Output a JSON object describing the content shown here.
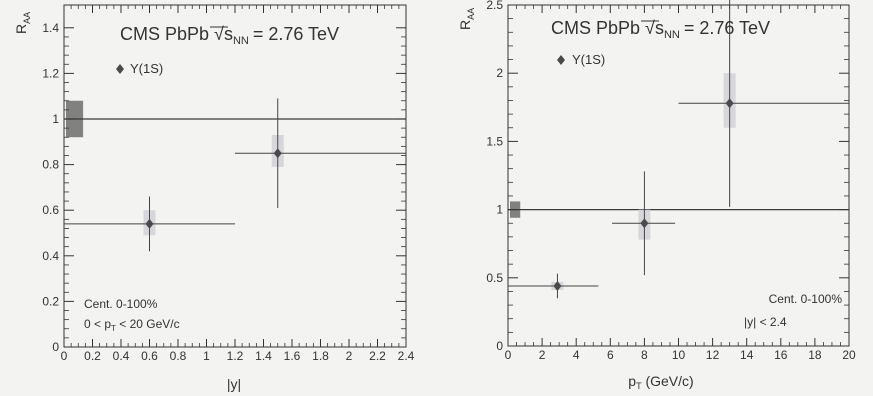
{
  "chart_data": [
    {
      "type": "scatter",
      "panel": "left",
      "header_prefix": "CMS PbPb ",
      "header_energy": "= 2.76 TeV",
      "legend": "Υ(1S)",
      "annotation_lines": [
        "Cent. 0-100%",
        "0 < p",
        " < 20 GeV/c"
      ],
      "xlabel": "|y|",
      "ylabel": "R",
      "ylabel_sub": "AA",
      "xlim": [
        0,
        2.4
      ],
      "ylim": [
        0,
        1.5
      ],
      "xticks": [
        0,
        0.2,
        0.4,
        0.6,
        0.8,
        1,
        1.2,
        1.4,
        1.6,
        1.8,
        2,
        2.2,
        2.4
      ],
      "xtick_labels": [
        "0",
        "0.2",
        "0.4",
        "0.6",
        "0.8",
        "1",
        "1.2",
        "1.4",
        "1.6",
        "1.8",
        "2",
        "2.2",
        "2.4"
      ],
      "yticks": [
        0,
        0.2,
        0.4,
        0.6,
        0.8,
        1,
        1.2,
        1.4
      ],
      "ytick_labels": [
        "0",
        "0.2",
        "0.4",
        "0.6",
        "0.8",
        "1",
        "1.2",
        "1.4"
      ],
      "reference_line": 1,
      "global_box": {
        "x": [
          0,
          0.12
        ],
        "y": [
          0.92,
          1.08
        ]
      },
      "points": [
        {
          "x": 0.6,
          "y": 0.54,
          "xerr": [
            0.6,
            0.6
          ],
          "yerr": [
            0.12,
            0.12
          ],
          "syst_y": [
            0.49,
            0.6
          ]
        },
        {
          "x": 1.5,
          "y": 0.85,
          "xerr": [
            0.3,
            0.9
          ],
          "yerr": [
            0.24,
            0.24
          ],
          "syst_y": [
            0.79,
            0.93
          ]
        }
      ],
      "grid": false
    },
    {
      "type": "scatter",
      "panel": "right",
      "header_prefix": "CMS PbPb ",
      "header_energy": "= 2.76 TeV",
      "legend": "Υ(1S)",
      "annotation_lines": [
        "Cent. 0-100%",
        "|y| < 2.4"
      ],
      "xlabel": "p",
      "xlabel_tail": " (GeV/c)",
      "ylabel": "R",
      "ylabel_sub": "AA",
      "xlim": [
        0,
        20
      ],
      "ylim": [
        0,
        2.5
      ],
      "xticks": [
        0,
        2,
        4,
        6,
        8,
        10,
        12,
        14,
        16,
        18,
        20
      ],
      "xtick_labels": [
        "0",
        "2",
        "4",
        "6",
        "8",
        "10",
        "12",
        "14",
        "16",
        "18",
        "20"
      ],
      "yticks": [
        0,
        0.5,
        1,
        1.5,
        2,
        2.5
      ],
      "ytick_labels": [
        "0",
        "0.5",
        "1",
        "1.5",
        "2",
        "2.5"
      ],
      "reference_line": 1,
      "global_box": {
        "x": [
          0,
          0.6
        ],
        "y": [
          0.94,
          1.06
        ]
      },
      "points": [
        {
          "x": 2.9,
          "y": 0.44,
          "xerr": [
            2.9,
            2.4
          ],
          "yerr": [
            0.09,
            0.09
          ],
          "syst_y": [
            0.41,
            0.47
          ]
        },
        {
          "x": 8,
          "y": 0.9,
          "xerr": [
            1.9,
            1.8
          ],
          "yerr": [
            0.38,
            0.38
          ],
          "syst_y": [
            0.78,
            1.0
          ]
        },
        {
          "x": 13,
          "y": 1.78,
          "xerr": [
            3,
            7
          ],
          "yerr": [
            0.76,
            0.76
          ],
          "syst_y": [
            1.6,
            2.0
          ]
        }
      ],
      "grid": false
    }
  ],
  "colors": {
    "background": "#f3f3f1",
    "ink": "#333333",
    "reference_line": "#3a3a3a",
    "stat_error": "#444444",
    "syst_box": "#cfd0d6",
    "global_box": "#6c6c6c",
    "marker": "#4a4a4a"
  }
}
